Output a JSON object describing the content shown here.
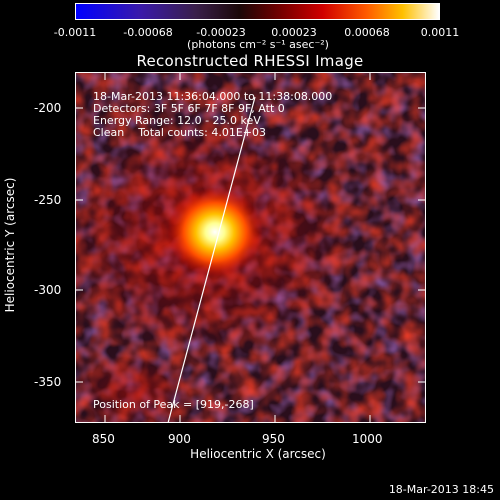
{
  "colorbar": {
    "tick_labels": [
      "-0.0011",
      "-0.00068",
      "-0.00023",
      "0.00023",
      "0.00068",
      "0.0011"
    ],
    "units": "(photons cm⁻² s⁻¹ asec⁻²)"
  },
  "title": "Reconstructed RHESSI Image",
  "info": {
    "time_range": "18-Mar-2013 11:36:04.000 to 11:38:08.000",
    "detectors": "Detectors: 3F 5F 6F 7F 8F 9F, Att 0",
    "energy": "Energy Range: 12.0 - 25.0 keV",
    "clean": "Clean    Total counts: 4.01E+03",
    "peak": "Position of Peak = [919,-268]"
  },
  "axes": {
    "xlabel": "Heliocentric X (arcsec)",
    "ylabel": "Heliocentric Y (arcsec)",
    "xticks": [
      "850",
      "900",
      "950",
      "1000"
    ],
    "yticks": [
      "-200",
      "-250",
      "-300",
      "-350"
    ]
  },
  "footer": "18-Mar-2013 18:45",
  "colors": {
    "background": "#000000",
    "text": "#ffffff"
  }
}
